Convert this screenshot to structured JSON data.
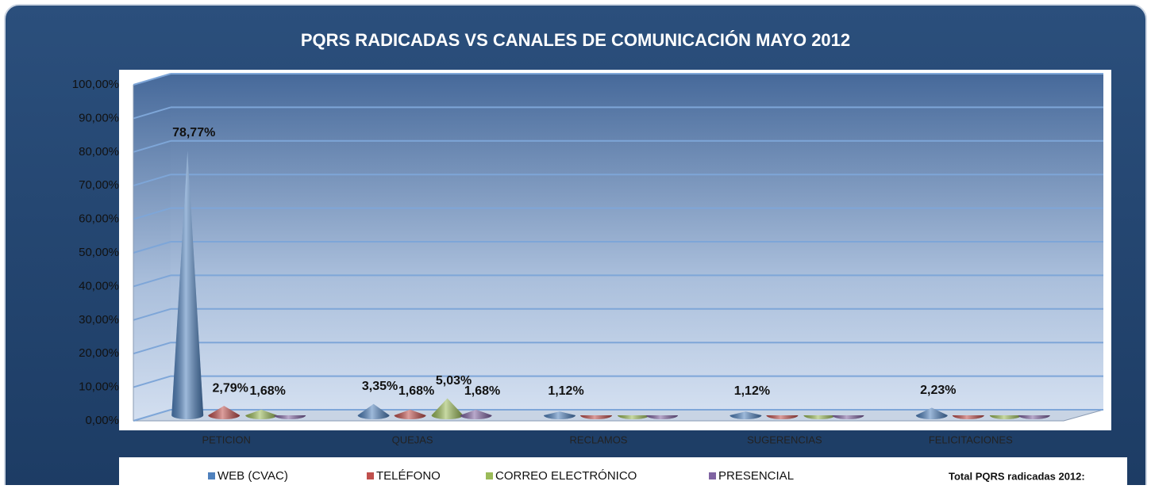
{
  "chart_data": {
    "type": "cone3d",
    "title": "PQRS RADICADAS VS CANALES DE COMUNICACIÓN  MAYO 2012",
    "categories": [
      "PETICION",
      "QUEJAS",
      "RECLAMOS",
      "SUGERENCIAS",
      "FELICITACIONES"
    ],
    "series": [
      {
        "name": "WEB (CVAC)",
        "color": "#4f81bd",
        "values": [
          78.77,
          3.35,
          1.12,
          1.12,
          2.23
        ],
        "value_labels": [
          "78,77%",
          "3,35%",
          "1,12%",
          "1,12%",
          "2,23%"
        ]
      },
      {
        "name": "TELÉFONO",
        "color": "#c0504d",
        "values": [
          2.79,
          1.68,
          0,
          0,
          0
        ],
        "value_labels": [
          "2,79%",
          "1,68%",
          null,
          null,
          null
        ]
      },
      {
        "name": "CORREO ELECTRÓNICO",
        "color": "#9bbb59",
        "values": [
          1.68,
          5.03,
          0,
          0,
          0
        ],
        "value_labels": [
          "1,68%",
          "5,03%",
          null,
          null,
          null
        ]
      },
      {
        "name": "PRESENCIAL",
        "color": "#8064a2",
        "values": [
          0,
          1.68,
          0,
          0,
          0
        ],
        "value_labels": [
          null,
          "1,68%",
          null,
          null,
          null
        ]
      }
    ],
    "ylim": [
      0,
      100
    ],
    "yticks": [
      {
        "value": 0,
        "label": "0,00%"
      },
      {
        "value": 10,
        "label": "10,00%"
      },
      {
        "value": 20,
        "label": "20,00%"
      },
      {
        "value": 30,
        "label": "30,00%"
      },
      {
        "value": 40,
        "label": "40,00%"
      },
      {
        "value": 50,
        "label": "50,00%"
      },
      {
        "value": 60,
        "label": "60,00%"
      },
      {
        "value": 70,
        "label": "70,00%"
      },
      {
        "value": 80,
        "label": "80,00%"
      },
      {
        "value": 90,
        "label": "90,00%"
      },
      {
        "value": 100,
        "label": "100,00%"
      }
    ],
    "grid": true,
    "legend": "bottom",
    "annotation": "Total PQRS radicadas 2012:"
  }
}
